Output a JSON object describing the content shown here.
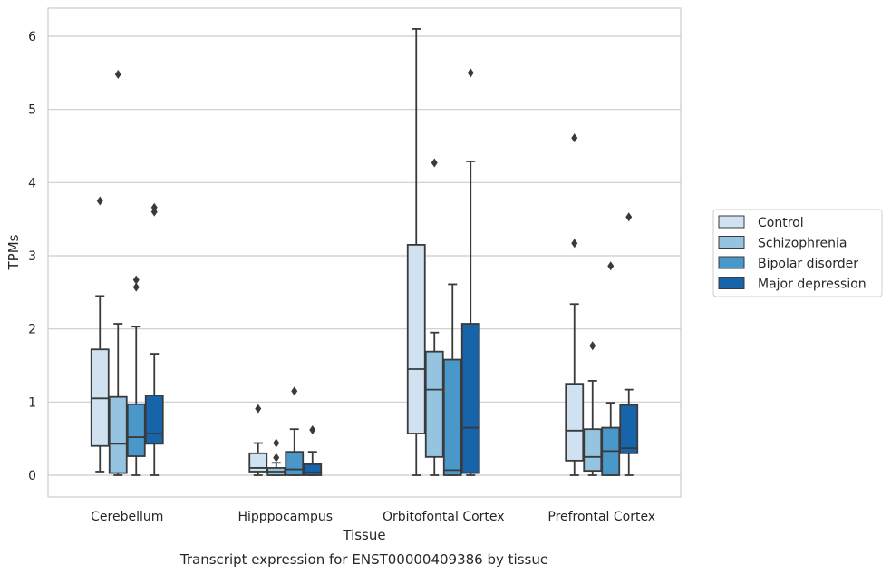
{
  "chart_data": {
    "type": "boxplot",
    "caption": "Transcript expression for ENST00000409386 by tissue",
    "xlabel": "Tissue",
    "ylabel": "TPMs",
    "ylim": [
      -0.3,
      6.4
    ],
    "yticks": [
      0,
      1,
      2,
      3,
      4,
      5,
      6
    ],
    "grid": true,
    "legend_position": "right",
    "categories": [
      "Cerebellum",
      "Hipppocampus",
      "Orbitofontal Cortex",
      "Prefrontal Cortex"
    ],
    "series": [
      {
        "name": "Control",
        "color": "#d0e1f2",
        "boxes": [
          {
            "whislo": 0.05,
            "q1": 0.4,
            "med": 1.05,
            "q3": 1.72,
            "whishi": 2.45,
            "fliers": [
              3.75
            ]
          },
          {
            "whislo": 0.0,
            "q1": 0.05,
            "med": 0.1,
            "q3": 0.3,
            "whishi": 0.44,
            "fliers": [
              0.91
            ]
          },
          {
            "whislo": 0.0,
            "q1": 0.57,
            "med": 1.45,
            "q3": 3.15,
            "whishi": 6.1,
            "fliers": []
          },
          {
            "whislo": 0.0,
            "q1": 0.2,
            "med": 0.61,
            "q3": 1.25,
            "whishi": 2.34,
            "fliers": [
              4.61,
              3.17
            ]
          }
        ]
      },
      {
        "name": "Schizophrenia",
        "color": "#94c4df",
        "boxes": [
          {
            "whislo": 0.0,
            "q1": 0.03,
            "med": 0.43,
            "q3": 1.07,
            "whishi": 2.07,
            "fliers": [
              5.48
            ]
          },
          {
            "whislo": 0.0,
            "q1": 0.0,
            "med": 0.05,
            "q3": 0.1,
            "whishi": 0.17,
            "fliers": [
              0.44,
              0.24
            ]
          },
          {
            "whislo": 0.0,
            "q1": 0.25,
            "med": 1.17,
            "q3": 1.69,
            "whishi": 1.95,
            "fliers": [
              4.27
            ]
          },
          {
            "whislo": 0.0,
            "q1": 0.06,
            "med": 0.25,
            "q3": 0.63,
            "whishi": 1.29,
            "fliers": [
              1.77
            ]
          }
        ]
      },
      {
        "name": "Bipolar disorder",
        "color": "#4a98c9",
        "boxes": [
          {
            "whislo": 0.0,
            "q1": 0.26,
            "med": 0.52,
            "q3": 0.97,
            "whishi": 2.03,
            "fliers": [
              2.67,
              2.57
            ]
          },
          {
            "whislo": 0.0,
            "q1": 0.0,
            "med": 0.08,
            "q3": 0.32,
            "whishi": 0.63,
            "fliers": [
              1.15
            ]
          },
          {
            "whislo": 0.0,
            "q1": 0.0,
            "med": 0.07,
            "q3": 1.58,
            "whishi": 2.61,
            "fliers": []
          },
          {
            "whislo": 0.0,
            "q1": 0.0,
            "med": 0.33,
            "q3": 0.65,
            "whishi": 0.99,
            "fliers": [
              2.86
            ]
          }
        ]
      },
      {
        "name": "Major depression",
        "color": "#1764ab",
        "boxes": [
          {
            "whislo": 0.0,
            "q1": 0.43,
            "med": 0.57,
            "q3": 1.09,
            "whishi": 1.66,
            "fliers": [
              3.66,
              3.6
            ]
          },
          {
            "whislo": 0.0,
            "q1": 0.0,
            "med": 0.04,
            "q3": 0.15,
            "whishi": 0.32,
            "fliers": [
              0.62
            ]
          },
          {
            "whislo": 0.0,
            "q1": 0.03,
            "med": 0.65,
            "q3": 2.07,
            "whishi": 4.29,
            "fliers": [
              5.5
            ]
          },
          {
            "whislo": 0.0,
            "q1": 0.3,
            "med": 0.37,
            "q3": 0.96,
            "whishi": 1.17,
            "fliers": [
              3.53
            ]
          }
        ]
      }
    ]
  }
}
